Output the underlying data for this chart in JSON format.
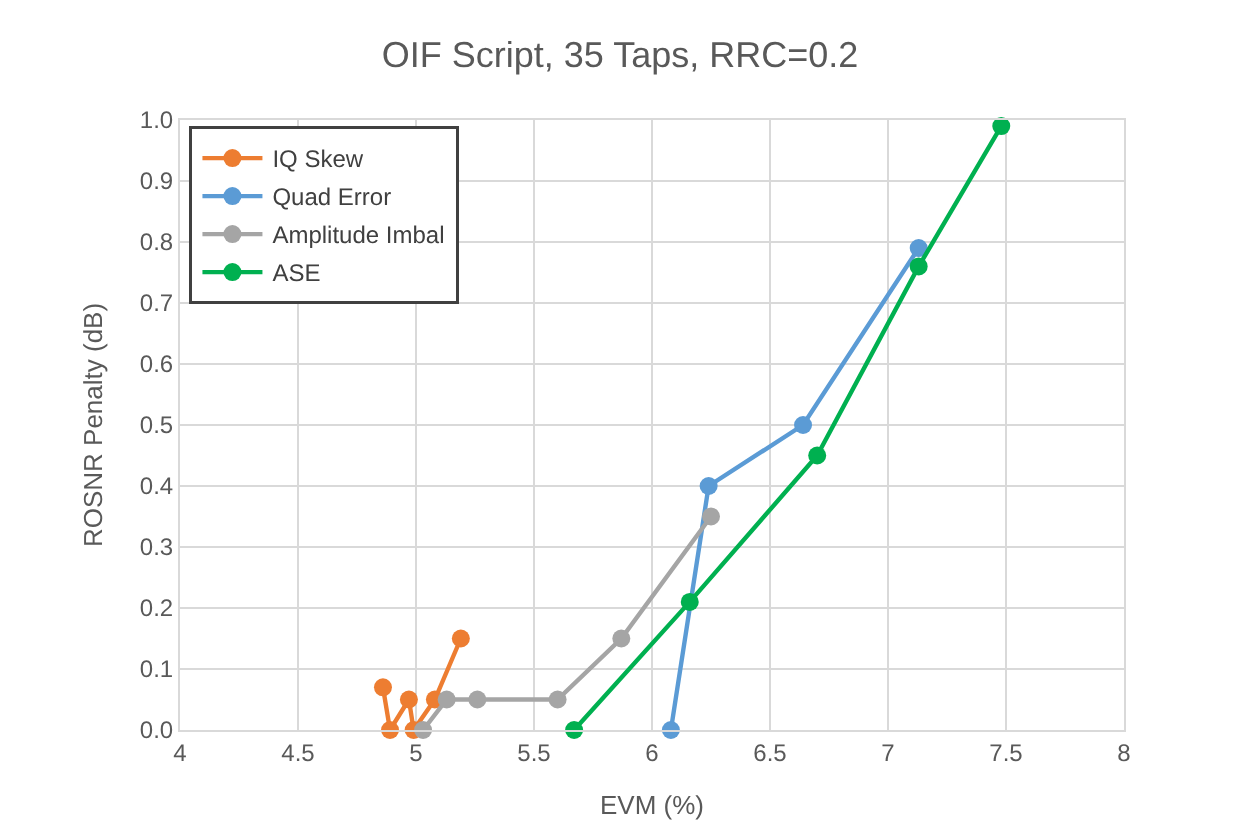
{
  "chart_data": {
    "type": "line",
    "title": "OIF Script, 35 Taps, RRC=0.2",
    "xlabel": "EVM (%)",
    "ylabel": "ROSNR Penalty (dB)",
    "xlim": [
      4,
      8
    ],
    "xticks": [
      4,
      4.5,
      5,
      5.5,
      6,
      6.5,
      7,
      7.5,
      8
    ],
    "ylim": [
      0,
      1
    ],
    "yticks": [
      {
        "value": 0,
        "label": "0.0"
      },
      0.1,
      0.2,
      0.3,
      0.4,
      0.5,
      0.6,
      0.7,
      0.8,
      0.9,
      {
        "value": 1,
        "label": "1.0"
      }
    ],
    "grid": true,
    "legend": "top left",
    "marker": "circle",
    "line_style": "solid",
    "series": [
      {
        "name": "IQ Skew",
        "color": "#ed7d31",
        "x": [
          4.86,
          4.89,
          4.97,
          4.99,
          5.08,
          5.19
        ],
        "values": [
          0.07,
          0,
          0.05,
          0,
          0.05,
          0.15
        ]
      },
      {
        "name": "Quad Error",
        "color": "#5b9bd5",
        "x": [
          6.08,
          6.24,
          6.64,
          7.13
        ],
        "values": [
          0,
          0.4,
          0.5,
          0.79
        ]
      },
      {
        "name": "Amplitude Imbal",
        "color": "#a5a5a5",
        "x": [
          5.03,
          5.13,
          5.26,
          5.6,
          5.87,
          6.25
        ],
        "values": [
          0,
          0.05,
          0.05,
          0.05,
          0.15,
          0.35
        ]
      },
      {
        "name": "ASE",
        "color": "#00b050",
        "x": [
          5.67,
          6.16,
          6.7,
          7.13,
          7.48
        ],
        "values": [
          0,
          0.21,
          0.45,
          0.76,
          0.99
        ]
      }
    ]
  }
}
